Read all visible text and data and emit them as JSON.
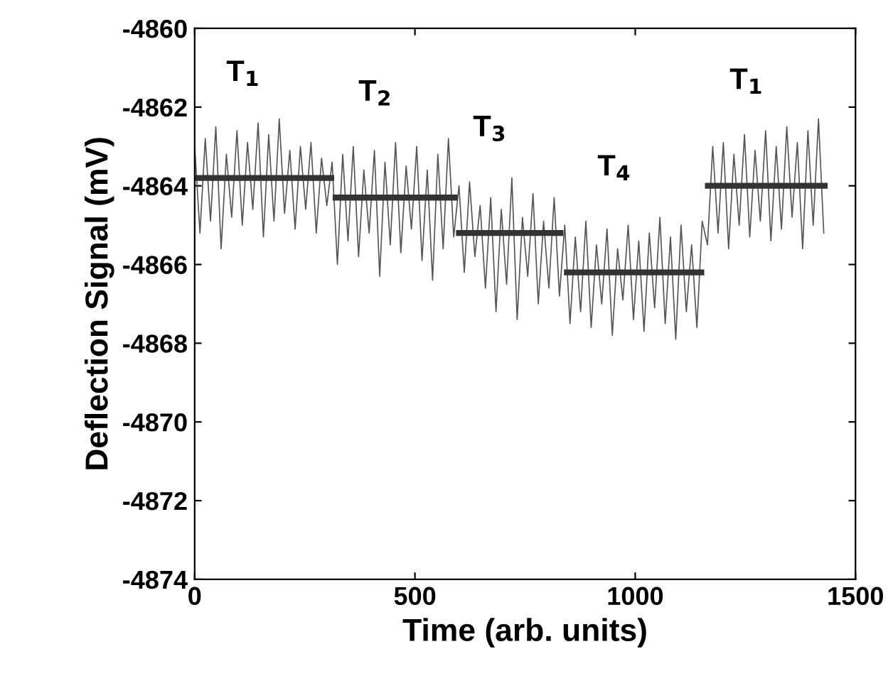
{
  "chart_data": {
    "type": "line",
    "xlabel": "Time (arb. units)",
    "ylabel": "Deflection Signal (mV)",
    "xlim": [
      0,
      1500
    ],
    "ylim": [
      -4874,
      -4860
    ],
    "xticks": [
      0,
      500,
      1000,
      1500
    ],
    "yticks": [
      -4874,
      -4872,
      -4870,
      -4868,
      -4866,
      -4864,
      -4862,
      -4860
    ],
    "grid": false,
    "legend": false,
    "series": [
      {
        "color": "#555555",
        "x": [
          0,
          12,
          24,
          36,
          48,
          60,
          72,
          84,
          96,
          108,
          120,
          132,
          144,
          156,
          168,
          180,
          192,
          204,
          216,
          228,
          240,
          252,
          264,
          276,
          288,
          300,
          312,
          324,
          336,
          348,
          360,
          372,
          384,
          396,
          408,
          420,
          432,
          444,
          456,
          468,
          480,
          492,
          504,
          516,
          528,
          540,
          552,
          564,
          576,
          588,
          600,
          612,
          624,
          636,
          648,
          660,
          672,
          684,
          696,
          708,
          720,
          732,
          744,
          756,
          768,
          780,
          792,
          804,
          816,
          828,
          840,
          852,
          864,
          876,
          888,
          900,
          912,
          924,
          936,
          948,
          960,
          972,
          984,
          996,
          1008,
          1020,
          1032,
          1044,
          1056,
          1068,
          1080,
          1092,
          1104,
          1116,
          1128,
          1140,
          1152,
          1164,
          1176,
          1188,
          1200,
          1212,
          1224,
          1236,
          1248,
          1260,
          1272,
          1284,
          1296,
          1308,
          1320,
          1332,
          1344,
          1356,
          1368,
          1380,
          1392,
          1404,
          1416,
          1428
        ],
        "values": [
          -4863.0,
          -4865.2,
          -4862.8,
          -4864.9,
          -4862.5,
          -4865.6,
          -4863.2,
          -4864.8,
          -4862.6,
          -4865.0,
          -4862.9,
          -4864.6,
          -4862.4,
          -4865.3,
          -4862.7,
          -4864.9,
          -4862.3,
          -4864.7,
          -4863.1,
          -4865.1,
          -4863.0,
          -4864.6,
          -4862.9,
          -4865.2,
          -4863.3,
          -4864.5,
          -4863.4,
          -4866.0,
          -4863.2,
          -4865.4,
          -4863.0,
          -4865.8,
          -4863.6,
          -4865.2,
          -4863.1,
          -4866.3,
          -4863.4,
          -4865.5,
          -4862.9,
          -4865.7,
          -4863.5,
          -4865.1,
          -4863.0,
          -4865.9,
          -4863.6,
          -4866.4,
          -4863.2,
          -4865.6,
          -4862.8,
          -4865.3,
          -4864.0,
          -4866.2,
          -4863.9,
          -4865.8,
          -4864.5,
          -4866.6,
          -4864.3,
          -4867.2,
          -4864.6,
          -4866.5,
          -4863.8,
          -4867.4,
          -4864.8,
          -4866.3,
          -4864.2,
          -4867.0,
          -4864.9,
          -4866.6,
          -4864.3,
          -4866.8,
          -4865.0,
          -4867.5,
          -4865.3,
          -4867.2,
          -4864.9,
          -4867.6,
          -4865.5,
          -4867.0,
          -4865.1,
          -4867.8,
          -4865.6,
          -4866.9,
          -4865.0,
          -4867.4,
          -4865.4,
          -4867.7,
          -4865.2,
          -4867.1,
          -4864.8,
          -4867.5,
          -4865.3,
          -4867.9,
          -4865.0,
          -4867.2,
          -4865.5,
          -4867.6,
          -4864.9,
          -4865.5,
          -4863.0,
          -4865.2,
          -4862.9,
          -4865.6,
          -4863.2,
          -4865.0,
          -4862.7,
          -4865.3,
          -4863.1,
          -4864.9,
          -4862.6,
          -4865.4,
          -4863.0,
          -4865.1,
          -4862.5,
          -4864.8,
          -4862.9,
          -4865.6,
          -4862.6,
          -4865.0,
          -4862.3,
          -4865.2
        ]
      },
      {
        "color": "#333333",
        "x": [
          0,
          310
        ],
        "values": [
          -4863.8,
          -4863.8
        ]
      },
      {
        "color": "#333333",
        "x": [
          320,
          590
        ],
        "values": [
          -4864.3,
          -4864.3
        ]
      },
      {
        "color": "#333333",
        "x": [
          600,
          830
        ],
        "values": [
          -4865.2,
          -4865.2
        ]
      },
      {
        "color": "#333333",
        "x": [
          845,
          1150
        ],
        "values": [
          -4866.2,
          -4866.2
        ]
      },
      {
        "color": "#333333",
        "x": [
          1165,
          1430
        ],
        "values": [
          -4864.0,
          -4864.0
        ]
      }
    ],
    "annotations": [
      "T$_{1}$",
      "T$_{2}$",
      "T$_{3}$",
      "T$_{4}$",
      "T$_{1}$"
    ]
  }
}
